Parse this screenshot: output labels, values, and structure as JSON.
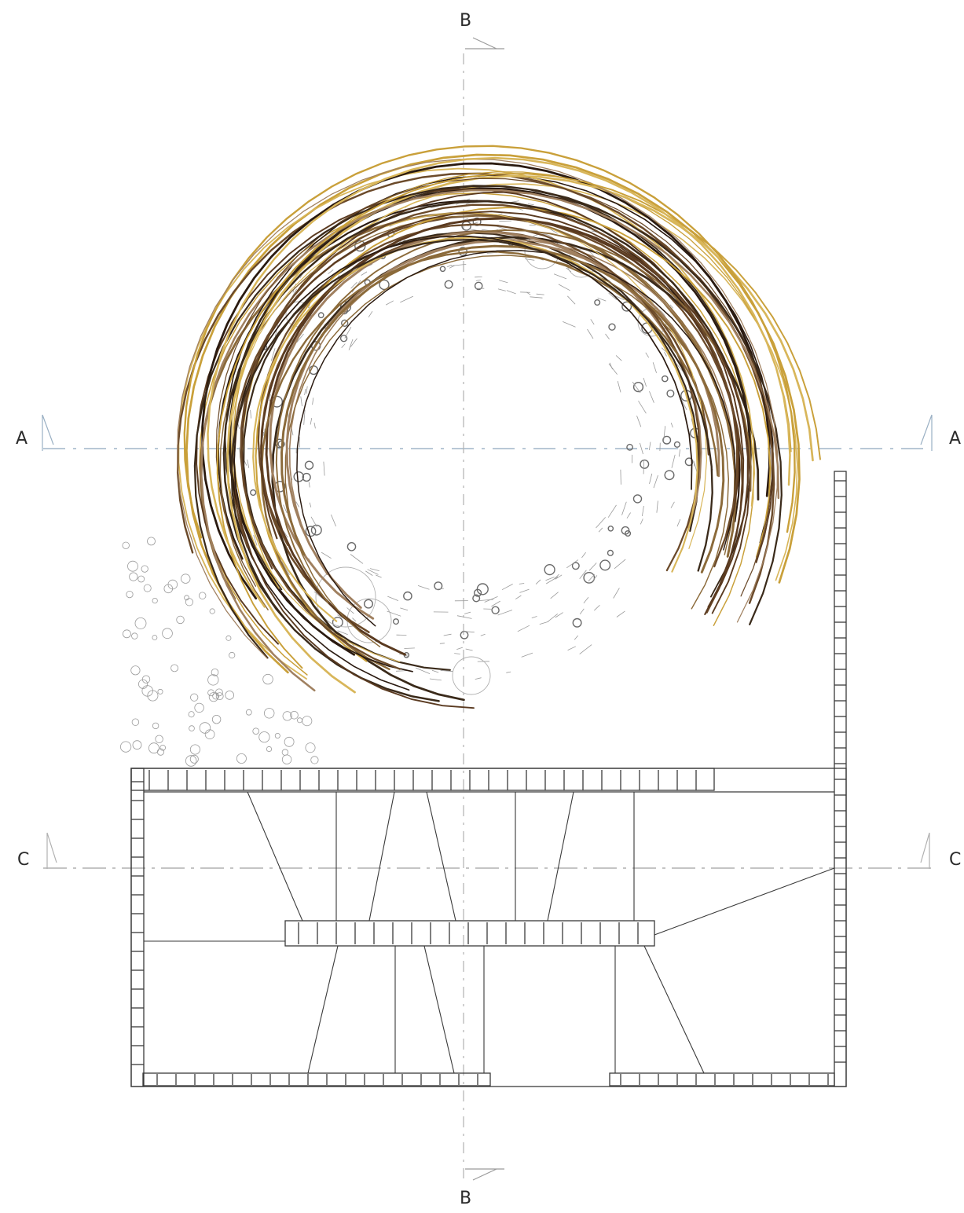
{
  "sections": {
    "a": "A",
    "b": "B",
    "c": "C"
  },
  "colors": {
    "linework": "#3a3a3a",
    "section_line": "#b8c8d6",
    "planting": "#8a8a8a",
    "stems": [
      "#2a1a10",
      "#6b4a2a",
      "#c9a03a",
      "#8b6a3a",
      "#3a2a1a",
      "#d8b65a",
      "#5a3a20",
      "#a08060"
    ]
  }
}
